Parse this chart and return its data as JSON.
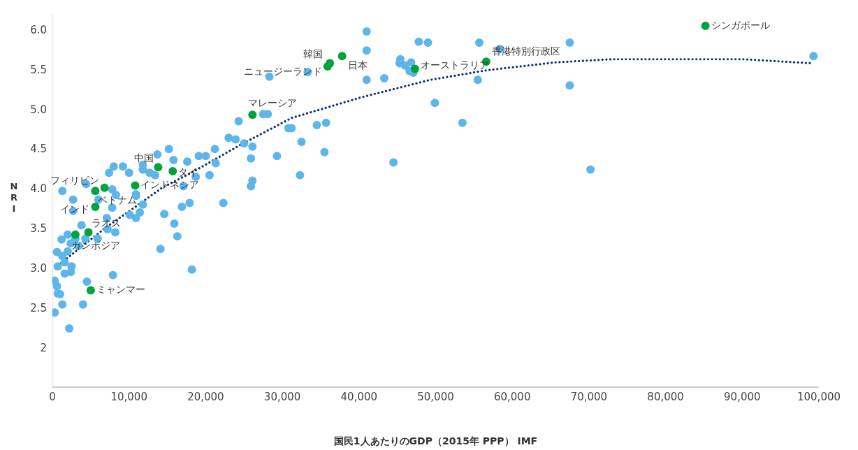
{
  "chart_data": {
    "type": "scatter",
    "xlabel": "国民1人あたりのGDP（2015年 PPP） IMF",
    "ylabel": "NRI",
    "xlim": [
      0,
      100000
    ],
    "ylim": [
      1.5,
      6.2
    ],
    "xticks": [
      0,
      {
        "value": 10000,
        "label": "10,000"
      },
      {
        "value": 20000,
        "label": "20,000"
      },
      {
        "value": 30000,
        "label": "30,000"
      },
      {
        "value": 40000,
        "label": "40,000"
      },
      {
        "value": 50000,
        "label": "50,000"
      },
      {
        "value": 60000,
        "label": "60,000"
      },
      {
        "value": 70000,
        "label": "70,000"
      },
      {
        "value": 80000,
        "label": "80,000"
      },
      {
        "value": 90000,
        "label": "90,000"
      },
      {
        "value": 100000,
        "label": "100,000"
      }
    ],
    "yticks": [
      2,
      {
        "value": 2.5,
        "label": "2.5"
      },
      {
        "value": 3,
        "label": "3.0"
      },
      {
        "value": 3.5,
        "label": "3.5"
      },
      {
        "value": 4,
        "label": "4.0"
      },
      {
        "value": 4.5,
        "label": "4.5"
      },
      {
        "value": 5,
        "label": "5.0"
      },
      {
        "value": 5.5,
        "label": "5.5"
      },
      {
        "value": 6,
        "label": "6.0"
      }
    ],
    "grid": false,
    "legend": false,
    "marker": "circle",
    "tick_labels": "xy",
    "series": [
      {
        "color": "#5db5e9",
        "x": [
          15200,
          13700,
          15800,
          17600,
          11800,
          11800,
          8000,
          9200,
          7400,
          10000,
          12700,
          13400,
          4400,
          1300,
          7800,
          8300,
          10900,
          10900,
          2700,
          6000,
          11800,
          16900,
          17900,
          2700,
          7800,
          11400,
          10100,
          10900,
          14600,
          7100,
          3800,
          15900,
          16300,
          2000,
          1200,
          3000,
          4300,
          5900,
          7200,
          8200,
          2400,
          3400,
          14100,
          600,
          1300,
          2000,
          700,
          1600,
          2500,
          1600,
          2400,
          7900,
          300,
          600,
          700,
          1000,
          4500,
          1300,
          4000,
          300,
          2200,
          18200,
          26100,
          21200,
          35500,
          29300,
          25900,
          19100,
          20000,
          21300,
          18700,
          20500,
          32300,
          26100,
          25900,
          17100,
          22300,
          24300,
          27500,
          28100,
          30800,
          31200,
          34500,
          23000,
          23900,
          25000,
          32500,
          35700,
          41000,
          41000,
          47800,
          49000,
          55700,
          58400,
          45400,
          45300,
          46000,
          46800,
          46600,
          47100,
          28300,
          33300,
          41000,
          43300,
          55500,
          49900,
          53500,
          44500,
          67500,
          99300,
          67500,
          70200
        ],
        "values": [
          4.5,
          4.43,
          4.36,
          4.34,
          4.3,
          4.24,
          4.28,
          4.28,
          4.2,
          4.2,
          4.2,
          4.17,
          4.06,
          3.97,
          3.99,
          3.92,
          3.93,
          3.91,
          3.86,
          3.86,
          3.8,
          3.77,
          3.82,
          3.72,
          3.76,
          3.7,
          3.67,
          3.63,
          3.68,
          3.63,
          3.54,
          3.56,
          3.4,
          3.42,
          3.36,
          3.37,
          3.37,
          3.37,
          3.49,
          3.45,
          3.31,
          3.28,
          3.24,
          3.2,
          3.15,
          3.21,
          3.02,
          3.07,
          3.02,
          2.93,
          2.95,
          2.91,
          2.84,
          2.77,
          2.68,
          2.67,
          2.83,
          2.54,
          2.54,
          2.44,
          2.24,
          2.98,
          4.53,
          4.5,
          4.46,
          4.41,
          4.38,
          4.41,
          4.41,
          4.32,
          4.15,
          4.17,
          4.17,
          4.1,
          4.03,
          4.03,
          3.82,
          4.85,
          4.94,
          4.94,
          4.76,
          4.76,
          4.8,
          4.64,
          4.62,
          4.57,
          4.59,
          4.83,
          5.98,
          5.74,
          5.85,
          5.84,
          5.84,
          5.76,
          5.63,
          5.58,
          5.55,
          5.59,
          5.48,
          5.46,
          5.41,
          5.47,
          5.37,
          5.39,
          5.37,
          5.08,
          4.83,
          4.33,
          5.84,
          5.67,
          5.3,
          4.24
        ]
      },
      {
        "color": "#00a33c",
        "x": [
          85200,
          56600,
          47300,
          37800,
          36200,
          35900,
          26100,
          13800,
          15700,
          10800,
          6800,
          5600,
          5600,
          4700,
          3000,
          5000
        ],
        "values": [
          6.05,
          5.6,
          5.51,
          5.67,
          5.58,
          5.54,
          4.93,
          4.27,
          4.22,
          4.04,
          4.01,
          3.97,
          3.77,
          3.45,
          3.42,
          2.72
        ]
      },
      {
        "type": "line",
        "color": "#0a2d74",
        "line_style": "dotted",
        "marker": "none",
        "x": [
          700,
          7100,
          9800,
          14300,
          18300,
          24700,
          31200,
          40300,
          49300,
          56600,
          65600,
          72900,
          90200,
          98900
        ],
        "values": [
          3.03,
          3.52,
          3.7,
          4.01,
          4.21,
          4.56,
          4.89,
          5.15,
          5.37,
          5.49,
          5.59,
          5.63,
          5.63,
          5.58
        ]
      }
    ],
    "annotations": [
      {
        "text": "シンガポール",
        "x": 85200,
        "y": 6.05
      },
      {
        "text": "香港特別行政区",
        "x": 56600,
        "y": 5.6
      },
      {
        "text": "オーストラリア",
        "x": 47300,
        "y": 5.51
      },
      {
        "text": "日本",
        "x": 37800,
        "y": 5.67
      },
      {
        "text": "韓国",
        "x": 36200,
        "y": 5.58
      },
      {
        "text": "ニュージーランド",
        "x": 35900,
        "y": 5.54
      },
      {
        "text": "マレーシア",
        "x": 26100,
        "y": 4.93
      },
      {
        "text": "中国",
        "x": 13800,
        "y": 4.27
      },
      {
        "text": "タイ",
        "x": 15700,
        "y": 4.22
      },
      {
        "text": "インドネシア",
        "x": 10800,
        "y": 4.04
      },
      {
        "text": "フィリピン",
        "x": 6800,
        "y": 4.01
      },
      {
        "text": "ベトナム",
        "x": 5600,
        "y": 3.97
      },
      {
        "text": "インド",
        "x": 5600,
        "y": 3.77
      },
      {
        "text": "ラオス",
        "x": 4700,
        "y": 3.45
      },
      {
        "text": "カンボジア",
        "x": 3000,
        "y": 3.42
      },
      {
        "text": "ミャンマー",
        "x": 5000,
        "y": 2.72
      }
    ]
  }
}
